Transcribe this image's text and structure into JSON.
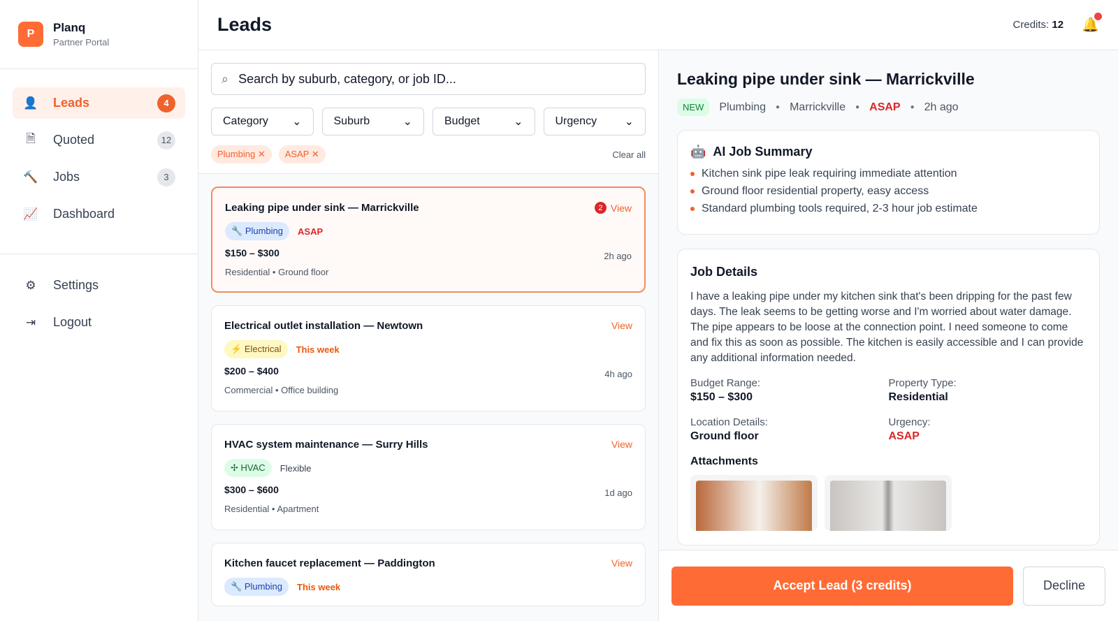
{
  "brand": {
    "logo_letter": "P",
    "name": "Planq",
    "subtitle": "Partner Portal"
  },
  "sidebar": {
    "items": [
      {
        "label": "Leads",
        "badge": "4",
        "icon": "user-plus-icon"
      },
      {
        "label": "Quoted",
        "badge": "12",
        "icon": "invoice-icon"
      },
      {
        "label": "Jobs",
        "badge": "3",
        "icon": "hammer-icon"
      },
      {
        "label": "Dashboard",
        "icon": "chart-line-icon"
      }
    ],
    "bottom": [
      {
        "label": "Settings",
        "icon": "gear-icon"
      },
      {
        "label": "Logout",
        "icon": "logout-icon"
      }
    ]
  },
  "header": {
    "title": "Leads",
    "credits_label": "Credits:",
    "credits_value": "12"
  },
  "filters": {
    "search_placeholder": "Search by suburb, category, or job ID...",
    "selects": [
      "Category",
      "Suburb",
      "Budget",
      "Urgency"
    ],
    "active_chips": [
      "Plumbing",
      "ASAP"
    ],
    "clear_all": "Clear all"
  },
  "leads": [
    {
      "title": "Leaking pipe under sink — Marrickville",
      "category": "Plumbing",
      "urgency": "ASAP",
      "price": "$150 – $300",
      "age": "2h ago",
      "meta": "Residential • Ground floor",
      "view": "View",
      "unread": "2"
    },
    {
      "title": "Electrical outlet installation — Newtown",
      "category": "Electrical",
      "urgency": "This week",
      "price": "$200 – $400",
      "age": "4h ago",
      "meta": "Commercial • Office building",
      "view": "View"
    },
    {
      "title": "HVAC system maintenance — Surry Hills",
      "category": "HVAC",
      "urgency": "Flexible",
      "price": "$300 – $600",
      "age": "1d ago",
      "meta": "Residential • Apartment",
      "view": "View"
    },
    {
      "title": "Kitchen faucet replacement — Paddington",
      "category": "Plumbing",
      "urgency": "This week",
      "view": "View"
    }
  ],
  "detail": {
    "title": "Leaking pipe under sink — Marrickville",
    "status": "NEW",
    "category": "Plumbing",
    "suburb": "Marrickville",
    "urgency": "ASAP",
    "age": "2h ago",
    "ai_title": "AI Job Summary",
    "ai_points": [
      "Kitchen sink pipe leak requiring immediate attention",
      "Ground floor residential property, easy access",
      "Standard plumbing tools required, 2-3 hour job estimate"
    ],
    "details_title": "Job Details",
    "description": "I have a leaking pipe under my kitchen sink that's been dripping for the past few days. The leak seems to be getting worse and I'm worried about water damage. The pipe appears to be loose at the connection point. I need someone to come and fix this as soon as possible. The kitchen is easily accessible and I can provide any additional information needed.",
    "fields": [
      {
        "label": "Budget Range:",
        "value": "$150 – $300"
      },
      {
        "label": "Property Type:",
        "value": "Residential"
      },
      {
        "label": "Location Details:",
        "value": "Ground floor"
      },
      {
        "label": "Urgency:",
        "value": "ASAP"
      }
    ],
    "attachments_title": "Attachments",
    "accept": "Accept Lead (3 credits)",
    "decline": "Decline"
  },
  "colors": {
    "accent": "#ff6b35",
    "urgent": "#dc2626",
    "warning": "#ea580c"
  }
}
